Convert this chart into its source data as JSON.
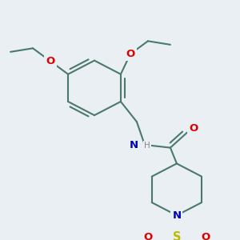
{
  "bg_color": "#eaeff3",
  "bond_color": "#4a7a6a",
  "atom_colors": {
    "O": "#dd0000",
    "N": "#0000bb",
    "S": "#bbbb00",
    "H": "#888888"
  },
  "lw": 1.5,
  "fs": 8.5
}
